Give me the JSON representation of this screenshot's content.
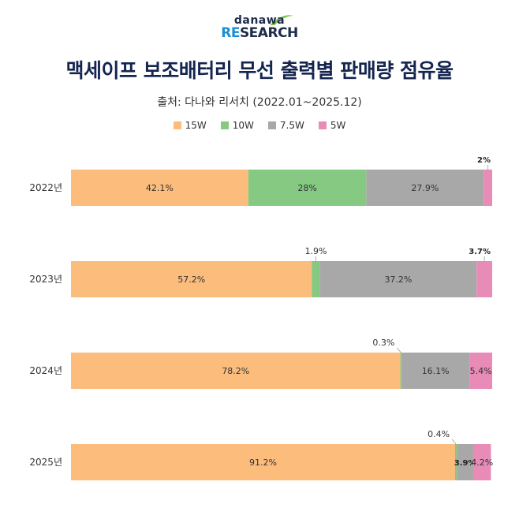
{
  "logo": {
    "small": "danawa",
    "big_accent": "RE",
    "big_rest": "SEARCH"
  },
  "chart_data": {
    "type": "bar",
    "orientation": "horizontal",
    "stacked": true,
    "title": "맥세이프 보조배터리 무선 출력별 판매량 점유율",
    "subtitle": "출처: 다나와 리서치 (2022.01~2025.12)",
    "categories": [
      "2022년",
      "2023년",
      "2024년",
      "2025년"
    ],
    "series": [
      {
        "name": "15W",
        "color": "#fbbc7c",
        "values": [
          42.1,
          57.2,
          78.2,
          91.2
        ],
        "labels": [
          "42.1%",
          "57.2%",
          "78.2%",
          "91.2%"
        ]
      },
      {
        "name": "10W",
        "color": "#85c982",
        "values": [
          28,
          1.9,
          0.3,
          0.4
        ],
        "labels": [
          "28%",
          "1.9%",
          "0.3%",
          "0.4%"
        ]
      },
      {
        "name": "7.5W",
        "color": "#a8a8a8",
        "values": [
          27.9,
          37.2,
          16.1,
          3.9
        ],
        "labels": [
          "27.9%",
          "37.2%",
          "16.1%",
          "3.9%"
        ]
      },
      {
        "name": "5W",
        "color": "#e88bb7",
        "values": [
          2,
          3.7,
          5.4,
          4.2
        ],
        "labels": [
          "2%",
          "3.7%",
          "5.4%",
          "4.2%"
        ]
      }
    ],
    "xlim": [
      0,
      100
    ],
    "legend_position": "top-center"
  }
}
